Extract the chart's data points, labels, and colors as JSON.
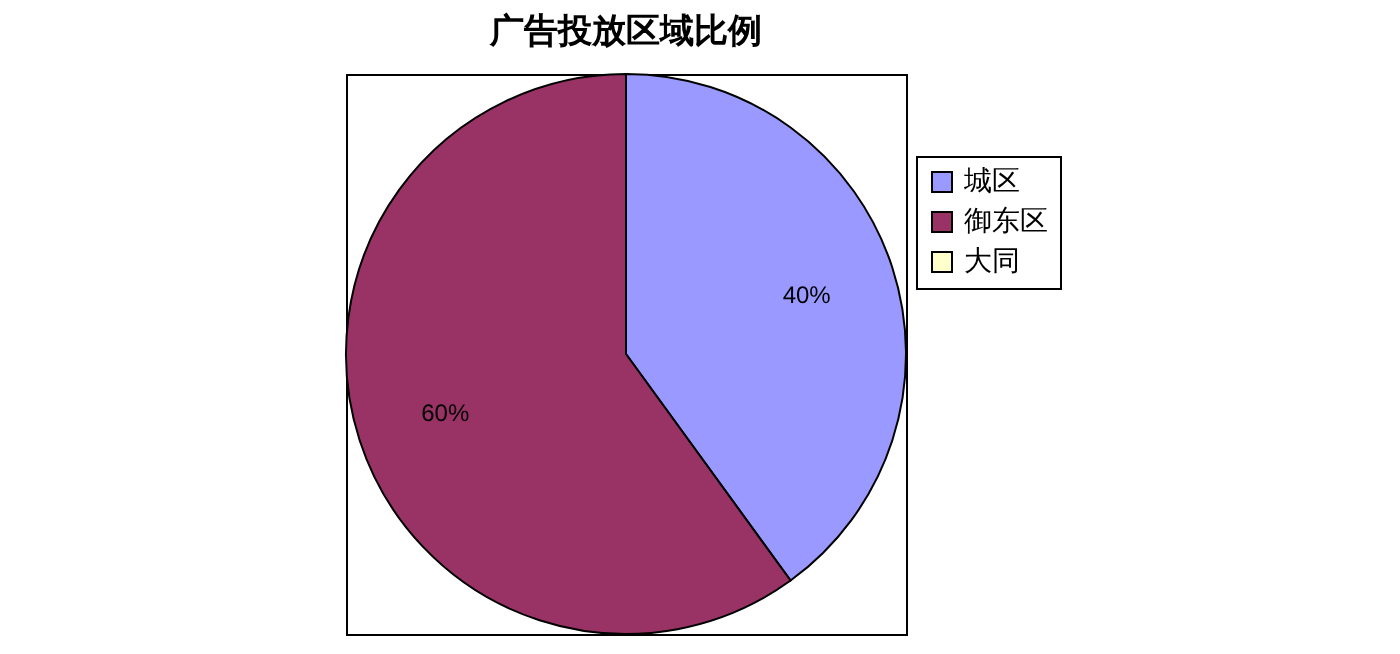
{
  "chart_data": {
    "type": "pie",
    "title": "广告投放区域比例",
    "categories": [
      "城区",
      "御东区",
      "大同"
    ],
    "values": [
      40,
      60,
      0
    ],
    "colors": [
      "#9999ff",
      "#993366",
      "#ffffcc"
    ],
    "value_labels": [
      "40%",
      "60%",
      null
    ],
    "legend": "right"
  }
}
